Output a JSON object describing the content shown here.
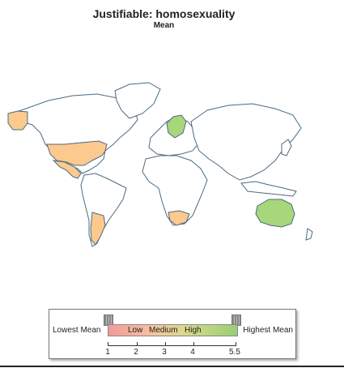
{
  "title": "Justifiable: homosexuality",
  "subtitle": "Mean",
  "legend": {
    "lowest_label": "Lowest Mean",
    "highest_label": "Highest Mean",
    "segments": [
      "Low",
      "Medium",
      "High"
    ],
    "ticks": [
      "1",
      "2",
      "3",
      "4",
      "5.5"
    ],
    "range": [
      1,
      5.5
    ]
  },
  "colors": {
    "low": "#f29a9a",
    "medium": "#fcc98e",
    "high": "#a8d67a",
    "no_data": "#ffffff",
    "border": "#4b6a80"
  },
  "map": {
    "highlighted_countries": [
      {
        "name": "Canada",
        "level": "medium"
      },
      {
        "name": "United States",
        "level": "medium"
      },
      {
        "name": "Mexico",
        "level": "medium"
      },
      {
        "name": "Argentina",
        "level": "medium"
      },
      {
        "name": "South Africa",
        "level": "medium"
      },
      {
        "name": "Sweden",
        "level": "high"
      },
      {
        "name": "Australia",
        "level": "high"
      }
    ]
  }
}
